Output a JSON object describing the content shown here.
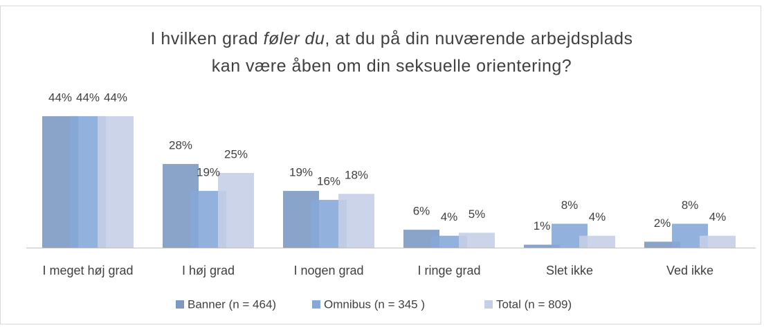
{
  "chart_data": {
    "type": "bar",
    "title": [
      [
        "I hvilken grad ",
        "føler du",
        ", at du på din nuværende arbejdsplads"
      ],
      [
        "kan være åben om din seksuelle orientering?"
      ]
    ],
    "categories": [
      "I meget høj grad",
      "I høj grad",
      "I nogen grad",
      "I ringe grad",
      "Slet ikke",
      "Ved ikke"
    ],
    "series": [
      {
        "name": "Banner (n = 464)",
        "color": "#7d99c2",
        "values": [
          44,
          28,
          19,
          6,
          1,
          2
        ],
        "value_labels": [
          "44%",
          "28%",
          "19%",
          "6%",
          "1%",
          "2%"
        ]
      },
      {
        "name": "Omnibus (n = 345 )",
        "color": "#86a8d8",
        "values": [
          44,
          19,
          16,
          4,
          8,
          8
        ],
        "value_labels": [
          "44%",
          "19%",
          "16%",
          "4%",
          "8%",
          "8%"
        ]
      },
      {
        "name": "Total (n = 809)",
        "color": "#c5cfe5",
        "values": [
          44,
          25,
          18,
          5,
          4,
          4
        ],
        "value_labels": [
          "44%",
          "25%",
          "18%",
          "5%",
          "4%",
          "4%"
        ]
      }
    ]
  }
}
